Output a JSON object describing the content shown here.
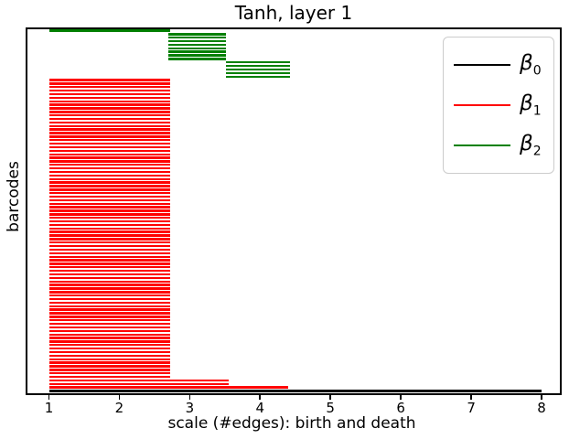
{
  "title": "Tanh, layer 1",
  "axes": {
    "xlabel": "scale (#edges): birth and death",
    "ylabel": "barcodes",
    "x_tick_labels": [
      "1",
      "2",
      "3",
      "4",
      "5",
      "6",
      "7",
      "8"
    ]
  },
  "legend": {
    "entries": [
      {
        "name": "beta0",
        "symbol": "β",
        "subscript": "0",
        "color": "#000000"
      },
      {
        "name": "beta1",
        "symbol": "β",
        "subscript": "1",
        "color": "#ff0000"
      },
      {
        "name": "beta2",
        "symbol": "β",
        "subscript": "2",
        "color": "#008000"
      }
    ]
  },
  "colors": {
    "beta0": "#000000",
    "beta1": "#ff0000",
    "beta2": "#008000",
    "spine": "#000000",
    "legend_border": "#cccccc",
    "background": "#ffffff"
  },
  "chart_data": {
    "type": "barcode",
    "title": "Tanh, layer 1",
    "xlabel": "scale (#edges): birth and death",
    "ylabel": "barcodes",
    "xlim": [
      0.65,
      8.35
    ],
    "x_ticks": [
      1,
      2,
      3,
      4,
      5,
      6,
      7,
      8
    ],
    "grid": false,
    "legend_position": "upper right",
    "total_bars": 103,
    "series_summary": [
      {
        "name": "β0",
        "color": "#000000",
        "bar_count": 1
      },
      {
        "name": "β1",
        "color": "#ff0000",
        "bar_count": 88
      },
      {
        "name": "β2",
        "color": "#008000",
        "bar_count": 14
      }
    ],
    "bar_groups": [
      {
        "series": "beta2",
        "color": "#008000",
        "count": 1,
        "birth": 1.0,
        "death": 2.72
      },
      {
        "series": "beta2",
        "color": "#008000",
        "count": 8,
        "birth": 2.7,
        "death": 3.52
      },
      {
        "series": "beta2",
        "color": "#008000",
        "count": 5,
        "birth": 3.52,
        "death": 4.42
      },
      {
        "series": "beta1",
        "color": "#ff0000",
        "count": 85,
        "birth": 1.0,
        "death": 2.72
      },
      {
        "series": "beta1",
        "color": "#ff0000",
        "count": 2,
        "birth": 1.0,
        "death": 3.55
      },
      {
        "series": "beta1",
        "color": "#ff0000",
        "count": 1,
        "birth": 1.0,
        "death": 4.4
      },
      {
        "series": "beta0",
        "color": "#000000",
        "count": 1,
        "birth": 1.0,
        "death": 8.0
      }
    ]
  }
}
